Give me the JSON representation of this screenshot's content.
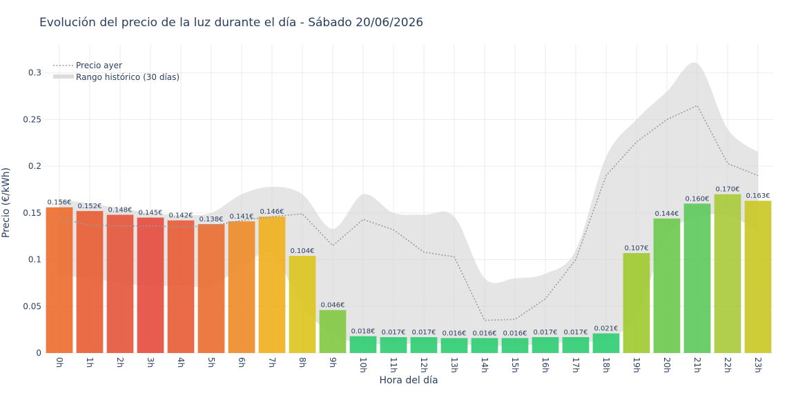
{
  "chart_data": {
    "type": "bar",
    "title": "Evolución del precio de la luz durante el día - Sábado 20/06/2026",
    "xlabel": "Hora del día",
    "ylabel": "Precio (€/kWh)",
    "ylim": [
      0,
      0.33
    ],
    "yticks": [
      0,
      0.05,
      0.1,
      0.15,
      0.2,
      0.25,
      0.3
    ],
    "ytick_labels": [
      "0",
      "0.05",
      "0.1",
      "0.15",
      "0.2",
      "0.25",
      "0.3"
    ],
    "categories": [
      "0h",
      "1h",
      "2h",
      "3h",
      "4h",
      "5h",
      "6h",
      "7h",
      "8h",
      "9h",
      "10h",
      "11h",
      "12h",
      "13h",
      "14h",
      "15h",
      "16h",
      "17h",
      "18h",
      "19h",
      "20h",
      "21h",
      "22h",
      "23h"
    ],
    "values": [
      0.156,
      0.152,
      0.148,
      0.145,
      0.142,
      0.138,
      0.141,
      0.146,
      0.104,
      0.046,
      0.018,
      0.017,
      0.017,
      0.016,
      0.016,
      0.016,
      0.017,
      0.017,
      0.021,
      0.107,
      0.144,
      0.16,
      0.17,
      0.163
    ],
    "value_labels": [
      "0.156€",
      "0.152€",
      "0.148€",
      "0.145€",
      "0.142€",
      "0.138€",
      "0.141€",
      "0.146€",
      "0.104€",
      "0.046€",
      "0.018€",
      "0.017€",
      "0.017€",
      "0.016€",
      "0.016€",
      "0.016€",
      "0.017€",
      "0.017€",
      "0.021€",
      "0.107€",
      "0.144€",
      "0.160€",
      "0.170€",
      "0.163€"
    ],
    "bar_colors": [
      "#ec6a2c",
      "#e85c33",
      "#e6543a",
      "#e54a3c",
      "#e85b34",
      "#ea6c2f",
      "#ed8a27",
      "#f0ae1c",
      "#dcc41d",
      "#82c841",
      "#2ecc71",
      "#2ecc71",
      "#2ecc71",
      "#2ecc71",
      "#2ecc71",
      "#2ecc71",
      "#2ecc71",
      "#2ecc71",
      "#2ecc71",
      "#9ec92e",
      "#6cc94c",
      "#5cc95a",
      "#a8c93a",
      "#c9c623"
    ],
    "series": [
      {
        "name": "Precio ayer",
        "type": "line",
        "style": "dotted",
        "color": "#9a9a9a",
        "values": [
          0.144,
          0.137,
          0.136,
          0.136,
          0.135,
          0.136,
          0.142,
          0.146,
          0.149,
          0.115,
          0.143,
          0.132,
          0.108,
          0.103,
          0.035,
          0.036,
          0.058,
          0.1,
          0.19,
          0.226,
          0.25,
          0.265,
          0.203,
          0.19
        ]
      },
      {
        "name": "Rango histórico (30 días)",
        "type": "band",
        "color": "#d9d9d9",
        "upper": [
          0.165,
          0.16,
          0.155,
          0.15,
          0.148,
          0.15,
          0.17,
          0.178,
          0.17,
          0.133,
          0.17,
          0.15,
          0.148,
          0.146,
          0.08,
          0.08,
          0.085,
          0.11,
          0.21,
          0.25,
          0.28,
          0.31,
          0.24,
          0.215
        ],
        "lower": [
          0.083,
          0.08,
          0.075,
          0.072,
          0.072,
          0.072,
          0.092,
          0.106,
          0.05,
          0.02,
          0.01,
          0.01,
          0.01,
          0.01,
          0.008,
          0.008,
          0.01,
          0.012,
          0.015,
          0.04,
          0.125,
          0.145,
          0.148,
          0.13
        ]
      }
    ],
    "legend_position": "top-left",
    "grid": true
  }
}
